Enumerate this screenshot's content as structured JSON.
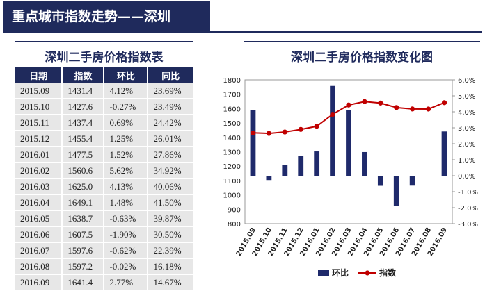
{
  "header": {
    "title": "重点城市指数走势——深圳"
  },
  "table": {
    "title": "深圳二手房价格指数表",
    "columns": [
      "日期",
      "指数",
      "环比",
      "同比"
    ],
    "rows": [
      [
        "2015.09",
        "1431.4",
        "4.12%",
        "23.69%"
      ],
      [
        "2015.10",
        "1427.6",
        "-0.27%",
        "23.49%"
      ],
      [
        "2015.11",
        "1437.4",
        "0.69%",
        "24.42%"
      ],
      [
        "2015.12",
        "1455.4",
        "1.25%",
        "26.01%"
      ],
      [
        "2016.01",
        "1477.5",
        "1.52%",
        "27.86%"
      ],
      [
        "2016.02",
        "1560.6",
        "5.62%",
        "34.92%"
      ],
      [
        "2016.03",
        "1625.0",
        "4.13%",
        "40.06%"
      ],
      [
        "2016.04",
        "1649.1",
        "1.48%",
        "41.50%"
      ],
      [
        "2016.05",
        "1638.7",
        "-0.63%",
        "39.87%"
      ],
      [
        "2016.06",
        "1607.5",
        "-1.90%",
        "30.50%"
      ],
      [
        "2016.07",
        "1597.6",
        "-0.62%",
        "22.39%"
      ],
      [
        "2016.08",
        "1597.2",
        "-0.02%",
        "16.18%"
      ],
      [
        "2016.09",
        "1641.4",
        "2.77%",
        "14.67%"
      ]
    ]
  },
  "chart_data": {
    "type": "bar",
    "title": "深圳二手房价格指数变化图",
    "categories": [
      "2015.09",
      "2015.10",
      "2015.11",
      "2015.12",
      "2016.01",
      "2016.02",
      "2016.03",
      "2016.04",
      "2016.05",
      "2016.06",
      "2016.07",
      "2016.08",
      "2016.09"
    ],
    "series": [
      {
        "name": "环比",
        "type": "bar",
        "axis": "right",
        "color": "#1f2a6b",
        "values": [
          4.12,
          -0.27,
          0.69,
          1.25,
          1.52,
          5.62,
          4.13,
          1.48,
          -0.63,
          -1.9,
          -0.62,
          -0.02,
          2.77
        ]
      },
      {
        "name": "指数",
        "type": "line",
        "axis": "left",
        "color": "#c00000",
        "values": [
          1431.4,
          1427.6,
          1437.4,
          1455.4,
          1477.5,
          1560.6,
          1625.0,
          1649.1,
          1638.7,
          1607.5,
          1597.6,
          1597.2,
          1641.4
        ]
      }
    ],
    "ylim_left": [
      800,
      1800
    ],
    "yticks_left": [
      "1800",
      "1700",
      "1600",
      "1500",
      "1400",
      "1300",
      "1200",
      "1100",
      "1000",
      "900",
      "800"
    ],
    "ylim_right": [
      -3,
      6
    ],
    "yticks_right": [
      "6.0%",
      "5.0%",
      "4.0%",
      "3.0%",
      "2.0%",
      "1.0%",
      "0.0%",
      "-1.0%",
      "-2.0%",
      "-3.0%"
    ],
    "legend": {
      "position": "bottom",
      "labels": [
        "环比",
        "指数"
      ]
    },
    "grid": false
  }
}
